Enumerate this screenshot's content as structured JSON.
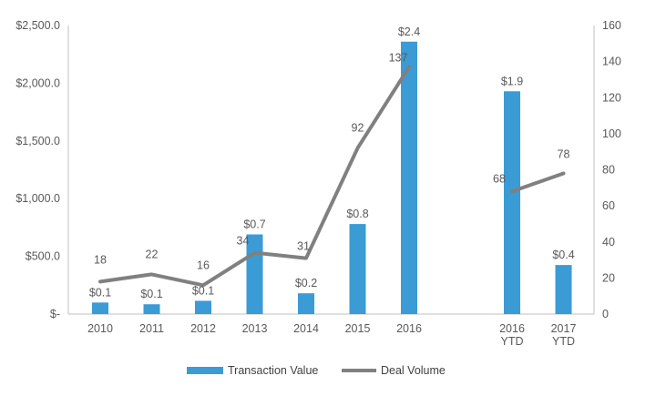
{
  "chart_data": {
    "type": "bar+line",
    "categories": [
      "2010",
      "2011",
      "2012",
      "2013",
      "2014",
      "2015",
      "2016",
      "",
      "2016 YTD",
      "2017 YTD"
    ],
    "category_lines": [
      [
        "2010"
      ],
      [
        "2011"
      ],
      [
        "2012"
      ],
      [
        "2013"
      ],
      [
        "2014"
      ],
      [
        "2015"
      ],
      [
        "2016"
      ],
      [],
      [
        "2016",
        "YTD"
      ],
      [
        "2017",
        "YTD"
      ]
    ],
    "series": [
      {
        "name": "Transaction Value",
        "type": "bar",
        "axis": "left",
        "color": "#3a9bd5",
        "values": [
          100,
          85,
          115,
          690,
          180,
          780,
          2360,
          null,
          1930,
          425
        ],
        "labels": [
          "$0.1",
          "$0.1",
          "$0.1",
          "$0.7",
          "$0.2",
          "$0.8",
          "$2.4",
          "",
          "$1.9",
          "$0.4"
        ]
      },
      {
        "name": "Deal Volume",
        "type": "line",
        "axis": "right",
        "color": "#808080",
        "values": [
          18,
          22,
          16,
          34,
          31,
          92,
          137,
          null,
          68,
          78
        ],
        "labels": [
          "18",
          "22",
          "16",
          "34",
          "31",
          "92",
          "137",
          "",
          "68",
          "78"
        ]
      }
    ],
    "left_axis": {
      "ylim": [
        0,
        2500
      ],
      "ticks": [
        0,
        500,
        1000,
        1500,
        2000,
        2500
      ],
      "tick_labels": [
        "$-",
        "$500.0",
        "$1,000.0",
        "$1,500.0",
        "$2,000.0",
        "$2,500.0"
      ]
    },
    "right_axis": {
      "ylim": [
        0,
        160
      ],
      "ticks": [
        0,
        20,
        40,
        60,
        80,
        100,
        120,
        140,
        160
      ],
      "tick_labels": [
        "0",
        "20",
        "40",
        "60",
        "80",
        "100",
        "120",
        "140",
        "160"
      ]
    },
    "grid": false,
    "legend": {
      "placement": "bottom-center",
      "items": [
        {
          "label": "Transaction Value",
          "kind": "bar",
          "color": "#3a9bd5"
        },
        {
          "label": "Deal Volume",
          "kind": "line",
          "color": "#808080"
        }
      ]
    }
  }
}
